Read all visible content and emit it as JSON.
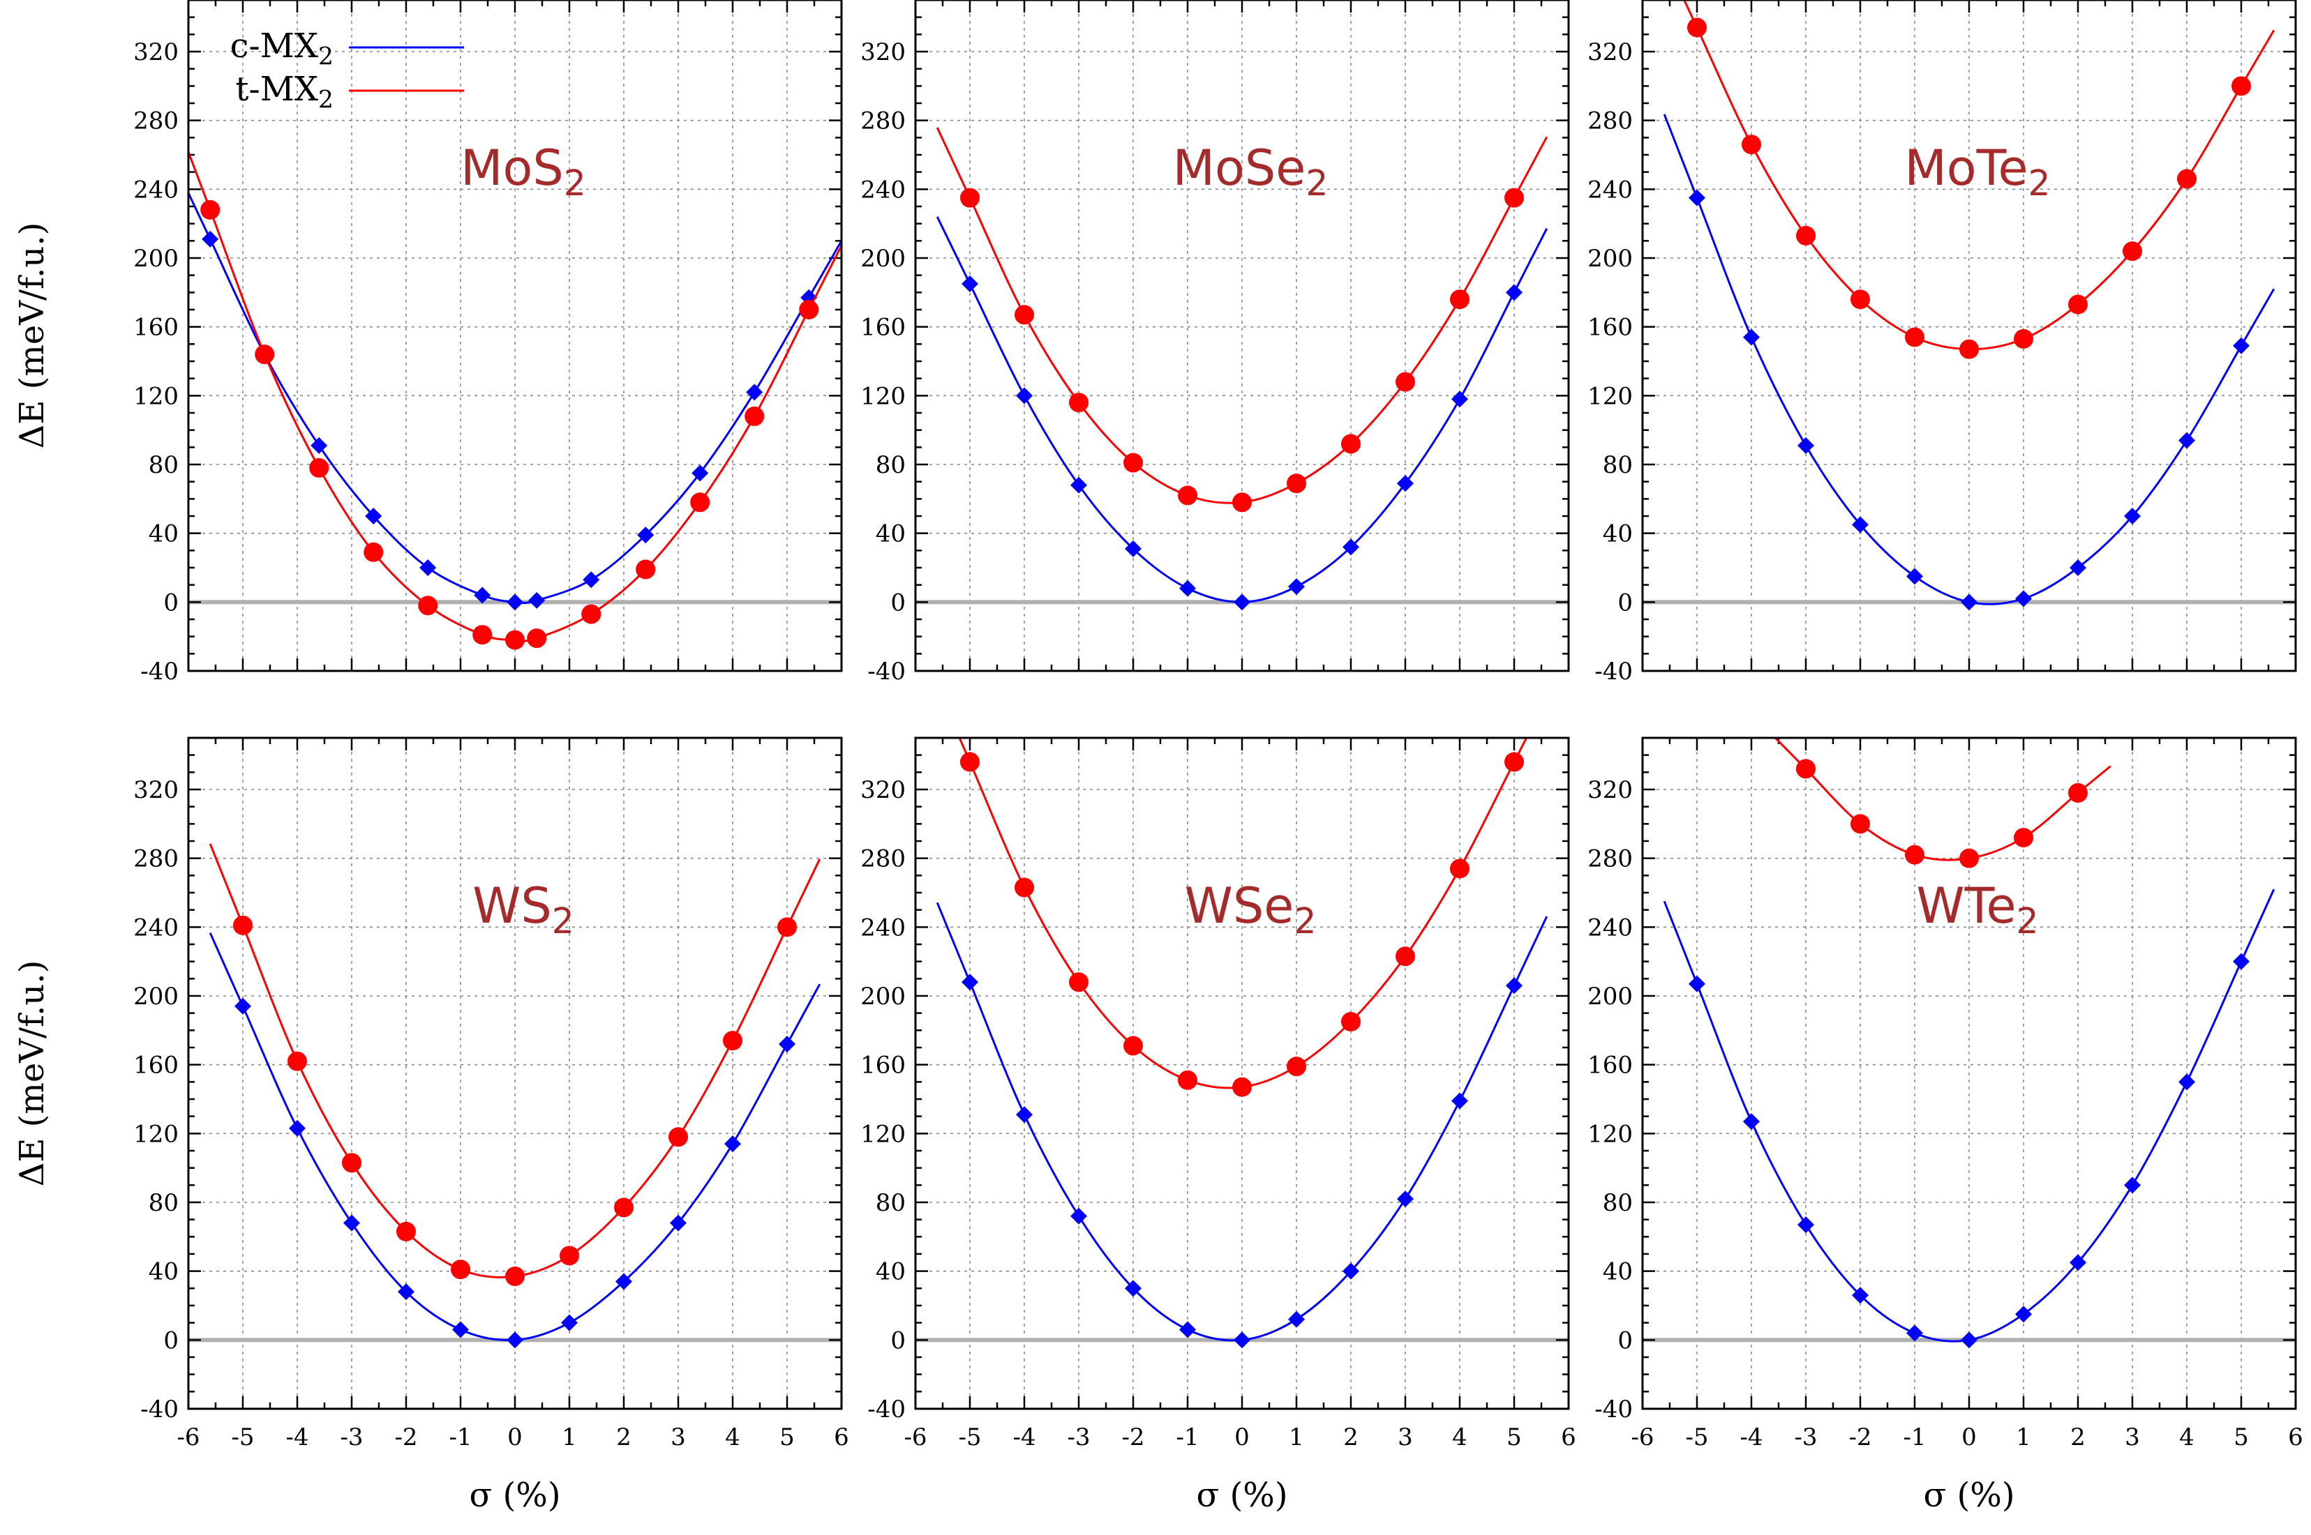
{
  "chart_data": {
    "type": "line",
    "layout": "2x3 grid",
    "xlabel": "σ (%)",
    "ylabel": "ΔE (meV/f.u.)",
    "xlim": [
      -6,
      6
    ],
    "ylim": [
      -40,
      350
    ],
    "xticks": [
      -6,
      -5,
      -4,
      -3,
      -2,
      -1,
      0,
      1,
      2,
      3,
      4,
      5,
      6
    ],
    "yticks": [
      -40,
      0,
      40,
      80,
      120,
      160,
      200,
      240,
      280,
      320
    ],
    "grid": true,
    "legend": {
      "placement": "top-left of first panel",
      "entries": [
        {
          "label": "c-MX",
          "sub": "2",
          "color": "#0000ff",
          "marker": "diamond"
        },
        {
          "label": "t-MX",
          "sub": "2",
          "color": "#ff0000",
          "marker": "circle"
        }
      ]
    },
    "colors": {
      "c": "#0000ff",
      "t": "#ff0000",
      "title": "#a52a2a",
      "zero_line": "#b0b0b0",
      "grid": "#888888"
    },
    "panels": [
      {
        "title": "MoS",
        "title_sub": "2",
        "series": [
          {
            "name": "c-MX2",
            "x": [
              -5.6,
              -4.6,
              -3.6,
              -2.6,
              -1.6,
              -0.6,
              0,
              0.4,
              1.4,
              2.4,
              3.4,
              4.4,
              5.4
            ],
            "y": [
              211,
              144,
              91,
              50,
              20,
              4,
              0,
              1,
              13,
              39,
              75,
              122,
              177
            ]
          },
          {
            "name": "t-MX2",
            "x": [
              -5.6,
              -4.6,
              -3.6,
              -2.6,
              -1.6,
              -0.6,
              0,
              0.4,
              1.4,
              2.4,
              3.4,
              4.4,
              5.4
            ],
            "y": [
              228,
              144,
              78,
              29,
              -2,
              -19,
              -22,
              -21,
              -7,
              19,
              58,
              108,
              170
            ]
          }
        ]
      },
      {
        "title": "MoSe",
        "title_sub": "2",
        "series": [
          {
            "name": "c-MX2",
            "x": [
              -5,
              -4,
              -3,
              -2,
              -1,
              0,
              1,
              2,
              3,
              4,
              5
            ],
            "y": [
              185,
              120,
              68,
              31,
              8,
              0,
              9,
              32,
              69,
              118,
              180
            ]
          },
          {
            "name": "t-MX2",
            "x": [
              -5,
              -4,
              -3,
              -2,
              -1,
              0,
              1,
              2,
              3,
              4,
              5
            ],
            "y": [
              235,
              167,
              116,
              81,
              62,
              58,
              69,
              92,
              128,
              176,
              235
            ]
          }
        ]
      },
      {
        "title": "MoTe",
        "title_sub": "2",
        "series": [
          {
            "name": "c-MX2",
            "x": [
              -5,
              -4,
              -3,
              -2,
              -1,
              0,
              1,
              2,
              3,
              4,
              5
            ],
            "y": [
              235,
              154,
              91,
              45,
              15,
              0,
              2,
              20,
              50,
              94,
              149
            ]
          },
          {
            "name": "t-MX2",
            "x": [
              -5,
              -4,
              -3,
              -2,
              -1,
              0,
              1,
              2,
              3,
              4,
              5
            ],
            "y": [
              334,
              266,
              213,
              176,
              154,
              147,
              153,
              173,
              204,
              246,
              300
            ]
          }
        ]
      },
      {
        "title": "WS",
        "title_sub": "2",
        "series": [
          {
            "name": "c-MX2",
            "x": [
              -5,
              -4,
              -3,
              -2,
              -1,
              0,
              1,
              2,
              3,
              4,
              5
            ],
            "y": [
              194,
              123,
              68,
              28,
              6,
              0,
              10,
              34,
              68,
              114,
              172
            ]
          },
          {
            "name": "t-MX2",
            "x": [
              -5,
              -4,
              -3,
              -2,
              -1,
              0,
              1,
              2,
              3,
              4,
              5
            ],
            "y": [
              241,
              162,
              103,
              63,
              41,
              37,
              49,
              77,
              118,
              174,
              240
            ]
          }
        ]
      },
      {
        "title": "WSe",
        "title_sub": "2",
        "series": [
          {
            "name": "c-MX2",
            "x": [
              -5,
              -4,
              -3,
              -2,
              -1,
              0,
              1,
              2,
              3,
              4,
              5
            ],
            "y": [
              208,
              131,
              72,
              30,
              6,
              0,
              12,
              40,
              82,
              139,
              206
            ]
          },
          {
            "name": "t-MX2",
            "x": [
              -5,
              -4,
              -3,
              -2,
              -1,
              0,
              1,
              2,
              3,
              4,
              5
            ],
            "y": [
              336,
              263,
              208,
              171,
              151,
              147,
              159,
              185,
              223,
              274,
              336
            ]
          }
        ]
      },
      {
        "title": "WTe",
        "title_sub": "2",
        "series": [
          {
            "name": "c-MX2",
            "x": [
              -5,
              -4,
              -3,
              -2,
              -1,
              0,
              1,
              2,
              3,
              4,
              5
            ],
            "y": [
              207,
              127,
              67,
              26,
              4,
              0,
              15,
              45,
              90,
              150,
              220
            ]
          },
          {
            "name": "t-MX2",
            "x": [
              -3,
              -2,
              -1,
              0,
              1,
              2
            ],
            "y": [
              332,
              300,
              282,
              280,
              292,
              318
            ]
          }
        ]
      }
    ]
  }
}
